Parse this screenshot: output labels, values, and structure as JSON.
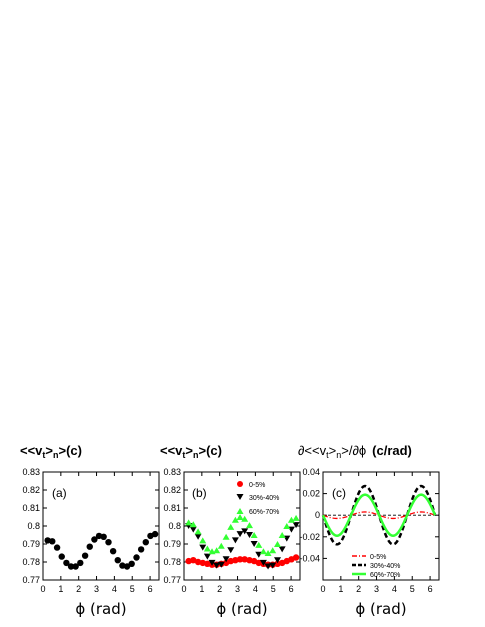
{
  "chart_data": [
    {
      "type": "scatter",
      "title_main": "<<v",
      "title_sub1": "t",
      "title_mid": ">",
      "title_sub2": "n",
      "title_end": ">(c)",
      "panel_label": "(a)",
      "xlabel": "ϕ (rad)",
      "xlim": [
        0,
        6.5
      ],
      "ylim": [
        0.77,
        0.83
      ],
      "xticks": [
        "0",
        "1",
        "2",
        "3",
        "4",
        "5",
        "6"
      ],
      "yticks": [
        "0.77",
        "0.78",
        "0.79",
        "0.8",
        "0.81",
        "0.82",
        "0.83"
      ],
      "series": [
        {
          "color": "#000000",
          "marker": "circle",
          "x": [
            0.26,
            0.52,
            0.79,
            1.05,
            1.31,
            1.57,
            1.83,
            2.09,
            2.36,
            2.62,
            2.88,
            3.14,
            3.4,
            3.67,
            3.93,
            4.19,
            4.45,
            4.71,
            4.97,
            5.24,
            5.5,
            5.76,
            6.02,
            6.28
          ],
          "y": [
            0.792,
            0.7915,
            0.788,
            0.783,
            0.7795,
            0.7775,
            0.7775,
            0.7795,
            0.7835,
            0.7885,
            0.7925,
            0.7945,
            0.794,
            0.791,
            0.786,
            0.781,
            0.778,
            0.7775,
            0.779,
            0.7825,
            0.787,
            0.791,
            0.7945,
            0.7955
          ]
        }
      ]
    },
    {
      "type": "scatter",
      "title_main": "<<v",
      "title_sub1": "t",
      "title_mid": ">",
      "title_sub2": "n",
      "title_end": ">(c)",
      "panel_label": "(b)",
      "xlabel": "ϕ (rad)",
      "xlim": [
        0,
        6.5
      ],
      "ylim": [
        0.77,
        0.83
      ],
      "xticks": [
        "0",
        "1",
        "2",
        "3",
        "4",
        "5",
        "6"
      ],
      "yticks": [
        "0.77",
        "0.78",
        "0.79",
        "0.8",
        "0.81",
        "0.82",
        "0.83"
      ],
      "legend_position": "top-right",
      "series": [
        {
          "name": "0-5%",
          "color": "#ff0000",
          "marker": "circle",
          "x": [
            0.26,
            0.52,
            0.79,
            1.05,
            1.31,
            1.57,
            1.83,
            2.09,
            2.36,
            2.62,
            2.88,
            3.14,
            3.4,
            3.67,
            3.93,
            4.19,
            4.45,
            4.71,
            4.97,
            5.24,
            5.5,
            5.76,
            6.02,
            6.28
          ],
          "y": [
            0.7805,
            0.781,
            0.78,
            0.7795,
            0.779,
            0.7785,
            0.7785,
            0.779,
            0.7795,
            0.7805,
            0.781,
            0.7815,
            0.7815,
            0.781,
            0.7805,
            0.7795,
            0.779,
            0.7785,
            0.7785,
            0.779,
            0.7795,
            0.7805,
            0.7815,
            0.7825
          ]
        },
        {
          "name": "30%-40%",
          "color": "#000000",
          "marker": "triangle-down",
          "x": [
            0.26,
            0.52,
            0.79,
            1.05,
            1.31,
            1.57,
            1.83,
            2.09,
            2.36,
            2.62,
            2.88,
            3.14,
            3.4,
            3.67,
            3.93,
            4.19,
            4.45,
            4.71,
            4.97,
            5.24,
            5.5,
            5.76,
            6.02,
            6.28
          ],
          "y": [
            0.8,
            0.798,
            0.794,
            0.788,
            0.783,
            0.7795,
            0.778,
            0.7785,
            0.7815,
            0.7865,
            0.792,
            0.7955,
            0.797,
            0.795,
            0.79,
            0.784,
            0.7795,
            0.7775,
            0.778,
            0.781,
            0.787,
            0.793,
            0.798,
            0.8005
          ]
        },
        {
          "name": "60%-70%",
          "color": "#33ff33",
          "marker": "triangle-up",
          "x": [
            0.26,
            0.52,
            0.79,
            1.05,
            1.31,
            1.57,
            1.83,
            2.09,
            2.36,
            2.62,
            2.88,
            3.14,
            3.4,
            3.67,
            3.93,
            4.19,
            4.45,
            4.71,
            4.97,
            5.24,
            5.5,
            5.76,
            6.02,
            6.28
          ],
          "y": [
            0.802,
            0.801,
            0.797,
            0.792,
            0.7875,
            0.786,
            0.7865,
            0.789,
            0.794,
            0.7995,
            0.8035,
            0.805,
            0.804,
            0.8005,
            0.795,
            0.7895,
            0.786,
            0.785,
            0.7865,
            0.79,
            0.795,
            0.8,
            0.8035,
            0.8045
          ]
        }
      ]
    },
    {
      "type": "line",
      "title_main": "∂<<v",
      "title_sub1": "t",
      "title_mid": ">",
      "title_sub2": "n",
      "title_end": ">/∂ϕ",
      "title_unit": "(c/rad)",
      "panel_label": "(c)",
      "xlabel": "ϕ (rad)",
      "xlim": [
        0,
        6.5
      ],
      "ylim": [
        -0.06,
        0.04
      ],
      "xticks": [
        "0",
        "1",
        "2",
        "3",
        "4",
        "5",
        "6"
      ],
      "yticks": [
        "-0.06",
        "-0.04",
        "-0.02",
        "0",
        "0.02",
        "0.04"
      ],
      "yticks_shown": [
        "",
        "-0.04",
        "-0.02",
        "0",
        "0.02",
        "0.04"
      ],
      "zero_line": true,
      "legend_position": "bottom-right",
      "series": [
        {
          "name": "0-5%",
          "color": "#ff0000",
          "style": "dash-dot",
          "amplitude": 0.003,
          "phase": 0.0
        },
        {
          "name": "30%-40%",
          "color": "#000000",
          "style": "dashed",
          "amplitude": 0.027,
          "phase": 0.0
        },
        {
          "name": "60%-70%",
          "color": "#33ff33",
          "style": "solid",
          "amplitude": 0.019,
          "phase": 0.0
        }
      ]
    }
  ]
}
